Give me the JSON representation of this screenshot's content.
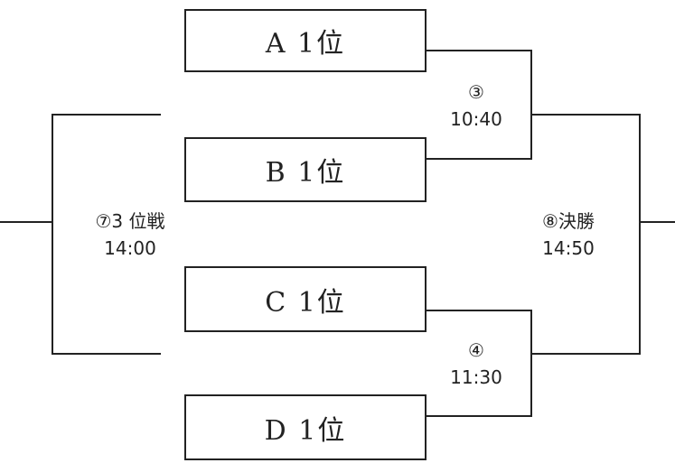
{
  "teams": [
    {
      "label": "A 1位"
    },
    {
      "label": "B 1位"
    },
    {
      "label": "C 1位"
    },
    {
      "label": "D 1位"
    }
  ],
  "matches": {
    "semifinal_ab": {
      "number": "③",
      "time": "10:40"
    },
    "semifinal_cd": {
      "number": "④",
      "time": "11:30"
    },
    "third_place": {
      "number": "⑦3 位戦",
      "time": "14:00"
    },
    "final": {
      "number": "⑧決勝",
      "time": "14:50"
    }
  },
  "colors": {
    "line": "#222222",
    "box_border": "#222222",
    "background": "#ffffff"
  }
}
